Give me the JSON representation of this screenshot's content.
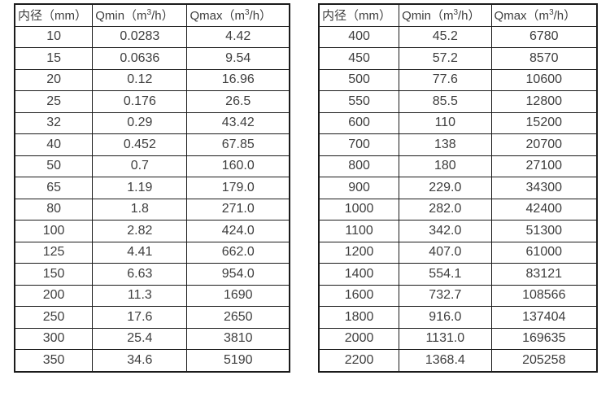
{
  "colors": {
    "background": "#ffffff",
    "border": "#1b1b1b",
    "text": "#3e3e3e"
  },
  "chart_data": [
    {
      "type": "table",
      "name": "flow-rates-small-diameters",
      "headers": {
        "diameter": "内径（mm）",
        "qmin": {
          "pre": "Qmin（m",
          "sup": "3",
          "post": "/h）"
        },
        "qmax": {
          "pre": "Qmax（m",
          "sup": "3",
          "post": "/h）"
        }
      },
      "rows": [
        [
          "10",
          "0.0283",
          "4.42"
        ],
        [
          "15",
          "0.0636",
          "9.54"
        ],
        [
          "20",
          "0.12",
          "16.96"
        ],
        [
          "25",
          "0.176",
          "26.5"
        ],
        [
          "32",
          "0.29",
          "43.42"
        ],
        [
          "40",
          "0.452",
          "67.85"
        ],
        [
          "50",
          "0.7",
          "160.0"
        ],
        [
          "65",
          "1.19",
          "179.0"
        ],
        [
          "80",
          "1.8",
          "271.0"
        ],
        [
          "100",
          "2.82",
          "424.0"
        ],
        [
          "125",
          "4.41",
          "662.0"
        ],
        [
          "150",
          "6.63",
          "954.0"
        ],
        [
          "200",
          "11.3",
          "1690"
        ],
        [
          "250",
          "17.6",
          "2650"
        ],
        [
          "300",
          "25.4",
          "3810"
        ],
        [
          "350",
          "34.6",
          "5190"
        ]
      ]
    },
    {
      "type": "table",
      "name": "flow-rates-large-diameters",
      "headers": {
        "diameter": "内径（mm）",
        "qmin": {
          "pre": "Qmin（m",
          "sup": "3",
          "post": "/h）"
        },
        "qmax": {
          "pre": "Qmax（m",
          "sup": "3",
          "post": "/h）"
        }
      },
      "rows": [
        [
          "400",
          "45.2",
          "6780"
        ],
        [
          "450",
          "57.2",
          "8570"
        ],
        [
          "500",
          "77.6",
          "10600"
        ],
        [
          "550",
          "85.5",
          "12800"
        ],
        [
          "600",
          "110",
          "15200"
        ],
        [
          "700",
          "138",
          "20700"
        ],
        [
          "800",
          "180",
          "27100"
        ],
        [
          "900",
          "229.0",
          "34300"
        ],
        [
          "1000",
          "282.0",
          "42400"
        ],
        [
          "1100",
          "342.0",
          "51300"
        ],
        [
          "1200",
          "407.0",
          "61000"
        ],
        [
          "1400",
          "554.1",
          "83121"
        ],
        [
          "1600",
          "732.7",
          "108566"
        ],
        [
          "1800",
          "916.0",
          "137404"
        ],
        [
          "2000",
          "1131.0",
          "169635"
        ],
        [
          "2200",
          "1368.4",
          "205258"
        ]
      ]
    }
  ]
}
